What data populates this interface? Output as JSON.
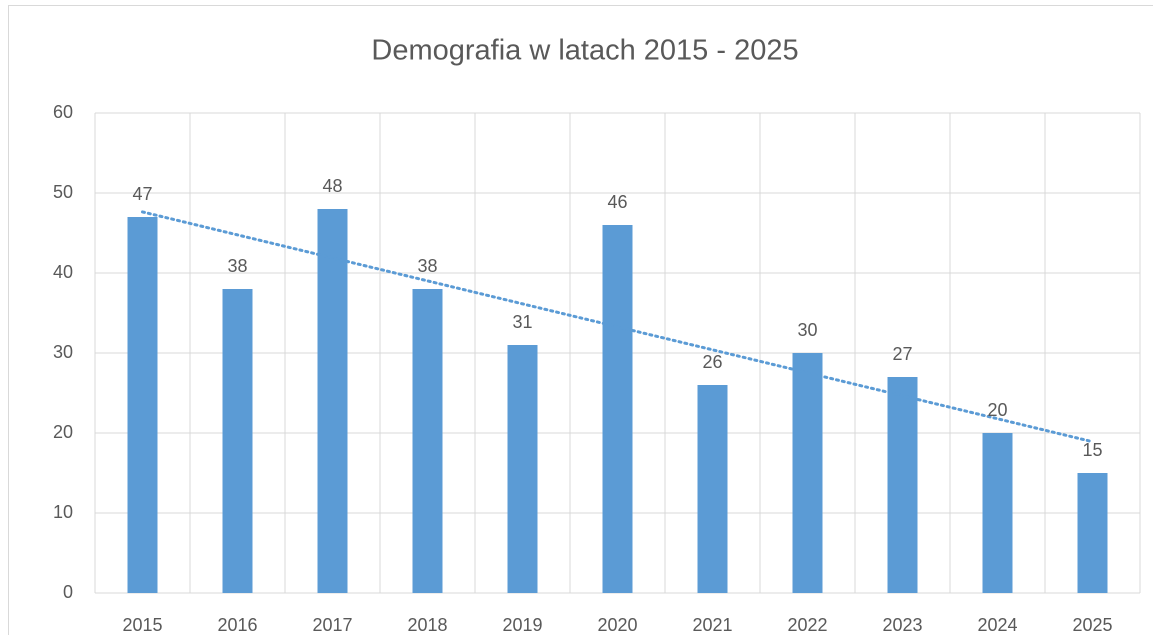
{
  "chart_data": {
    "type": "bar",
    "title": "Demografia w latach 2015 - 2025",
    "categories": [
      "2015",
      "2016",
      "2017",
      "2018",
      "2019",
      "2020",
      "2021",
      "2022",
      "2023",
      "2024",
      "2025"
    ],
    "values": [
      47,
      38,
      48,
      38,
      31,
      46,
      26,
      30,
      27,
      20,
      15
    ],
    "color": "#5b9bd5",
    "ylim": [
      0,
      60
    ],
    "yticks": [
      0,
      10,
      20,
      30,
      40,
      50,
      60
    ],
    "grid": true,
    "trendline": "linear",
    "trendline_color": "#5b9bd5"
  }
}
